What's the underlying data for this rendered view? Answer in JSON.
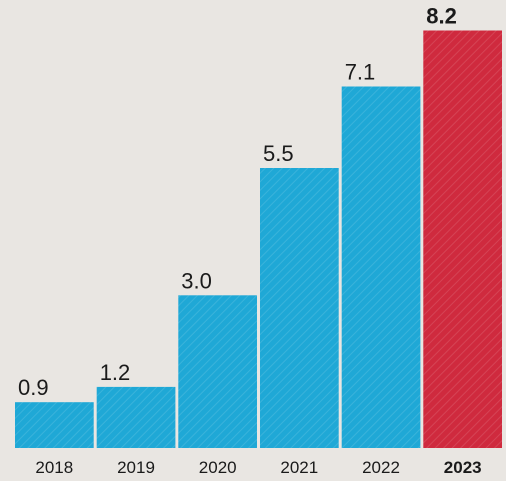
{
  "chart_data": {
    "type": "bar",
    "categories": [
      "2018",
      "2019",
      "2020",
      "2021",
      "2022",
      "2023"
    ],
    "values": [
      0.9,
      1.2,
      3.0,
      5.5,
      7.1,
      8.2
    ],
    "value_labels": [
      "0.9",
      "1.2",
      "3.0",
      "5.5",
      "7.1",
      "8.2"
    ],
    "title": "",
    "xlabel": "",
    "ylabel": "",
    "ylim": [
      0,
      8.8
    ],
    "grid": false,
    "legend": "none",
    "highlight_index": 5,
    "colors": {
      "bar": "#1fa8d6",
      "highlight": "#cf2a3e",
      "text": "#1a1a1a",
      "background": "#e9e6e2"
    }
  }
}
